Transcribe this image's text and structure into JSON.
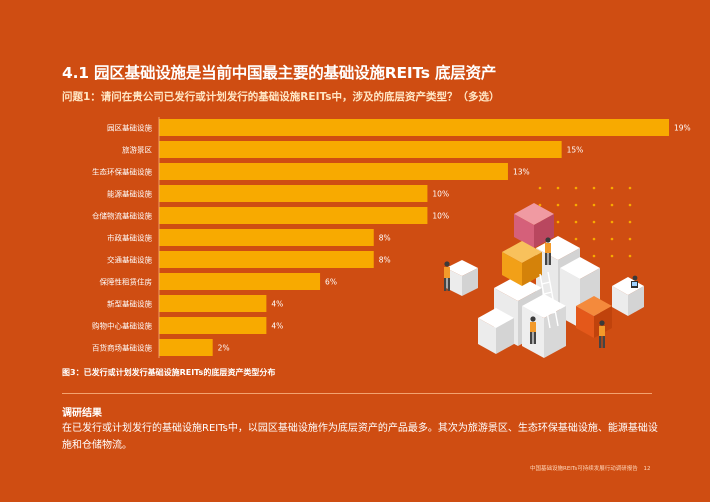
{
  "page": {
    "title": "4.1 园区基础设施是当前中国最主要的基础设施REITs 底层资产",
    "question": "问题1：请问在贵公司已发行或计划发行的基础设施REITs中，涉及的底层资产类型？（多选）",
    "caption": "图3：已发行或计划发行基础设施REITs的底层资产类型分布",
    "results_heading": "调研结果",
    "results_body": "在已发行或计划发行的基础设施REITs中，以园区基础设施作为底层资产的产品最多。其次为旅游景区、生态环保基础设施、能源基础设施和仓储物流。",
    "footer_text": "中国基础设施REITs可持续发展行动调研报告",
    "page_number": "12"
  },
  "colors": {
    "background": "#cf4d12",
    "bar": "#f8aa00"
  },
  "chart_data": {
    "type": "bar",
    "orientation": "horizontal",
    "categories": [
      "园区基础设施",
      "旅游景区",
      "生态环保基础设施",
      "能源基础设施",
      "仓储物流基础设施",
      "市政基础设施",
      "交通基础设施",
      "保障性租赁住房",
      "新型基础设施",
      "购物中心基础设施",
      "百货商场基础设施"
    ],
    "values": [
      19,
      15,
      13,
      10,
      10,
      8,
      8,
      6,
      4,
      4,
      2
    ],
    "value_labels": [
      "19%",
      "15%",
      "13%",
      "10%",
      "10%",
      "8%",
      "8%",
      "6%",
      "4%",
      "4%",
      "2%"
    ],
    "unit": "%",
    "xlim": [
      0,
      19
    ],
    "grid": false,
    "legend": "none"
  }
}
